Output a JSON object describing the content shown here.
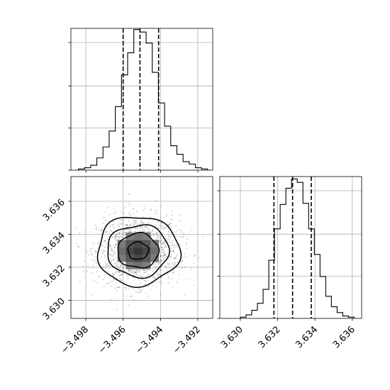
{
  "chart_data": [
    {
      "type": "histogram",
      "panel": "marginal-x",
      "title": "",
      "xlabel": "",
      "ylabel": "",
      "xlim": [
        -3.4988,
        -3.4912
      ],
      "grid": true,
      "bin_start": -3.4984,
      "bin_width": 0.00033,
      "counts": [
        1,
        2,
        4,
        10,
        19,
        32,
        52,
        78,
        96,
        115,
        113,
        104,
        80,
        55,
        36,
        20,
        13,
        7,
        5,
        2,
        1
      ],
      "ymax": 116,
      "quantile_lines": [
        -3.496,
        -3.4951,
        -3.4941
      ]
    },
    {
      "type": "histogram",
      "panel": "marginal-y",
      "title": "",
      "xlabel": "",
      "ylabel": "",
      "xlim": [
        3.6289,
        3.6365
      ],
      "xticks": [
        3.63,
        3.632,
        3.634,
        3.636
      ],
      "xtick_labels": [
        "3.630",
        "3.632",
        "3.634",
        "3.636"
      ],
      "grid": true,
      "bin_start": 3.63,
      "bin_width": 0.000305,
      "counts": [
        1,
        3,
        7,
        13,
        25,
        50,
        77,
        98,
        112,
        120,
        117,
        99,
        77,
        55,
        36,
        19,
        10,
        5,
        2,
        1
      ],
      "ymax": 122,
      "quantile_lines": [
        3.6318,
        3.6328,
        3.6338
      ]
    },
    {
      "type": "density-contour",
      "panel": "joint",
      "title": "",
      "xlabel": "",
      "ylabel": "",
      "xlim": [
        -3.4988,
        -3.4912
      ],
      "ylim": [
        3.6289,
        3.6375
      ],
      "xticks": [
        -3.498,
        -3.496,
        -3.494,
        -3.492
      ],
      "xtick_labels": [
        "−3.498",
        "−3.496",
        "−3.494",
        "−3.492"
      ],
      "yticks": [
        3.63,
        3.632,
        3.634,
        3.636
      ],
      "ytick_labels": [
        "3.630",
        "3.632",
        "3.634",
        "3.636"
      ],
      "grid": true,
      "center": [
        -3.4952,
        3.633
      ],
      "sigma": [
        0.0011,
        0.00105
      ],
      "contour_levels_sigma": [
        0.5,
        1.0,
        1.5,
        2.0
      ]
    }
  ]
}
